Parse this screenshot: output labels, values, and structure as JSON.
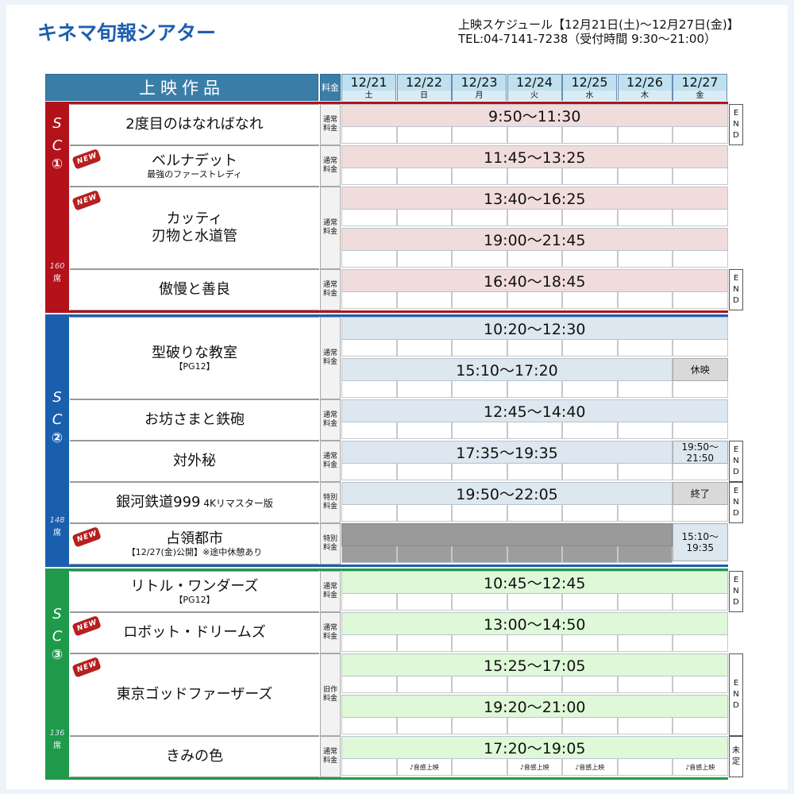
{
  "header": {
    "logo": "キネマ旬報シアター",
    "schedule_line": "上映スケジュール【12月21日(土)～12月27日(金)】",
    "tel_line": "TEL:04-7141-7238（受付時間 9:30～21:00）",
    "col_title": "上映作品",
    "col_fee": "料金"
  },
  "days": [
    {
      "date": "12/21",
      "dow": "土"
    },
    {
      "date": "12/22",
      "dow": "日"
    },
    {
      "date": "12/23",
      "dow": "月"
    },
    {
      "date": "12/24",
      "dow": "火"
    },
    {
      "date": "12/25",
      "dow": "水"
    },
    {
      "date": "12/26",
      "dow": "木"
    },
    {
      "date": "12/27",
      "dow": "金"
    }
  ],
  "labels": {
    "end": "END",
    "new": "NEW",
    "fee_normal": "通常料金",
    "fee_special": "特別料金",
    "fee_old": "旧作料金",
    "seki": "席"
  },
  "screens": [
    {
      "s": "S",
      "c": "C",
      "num": "①",
      "seats": "160",
      "color": "#b3121a",
      "films": [
        {
          "title": "2度目のはなればなれ",
          "sub": "",
          "fee": "通常料金",
          "new": false,
          "times": [
            "9:50～11:30"
          ],
          "end": "END"
        },
        {
          "title": "ベルナデット",
          "sub": "最強のファーストレディ",
          "fee": "通常料金",
          "new": true,
          "times": [
            "11:45～13:25"
          ],
          "end": ""
        },
        {
          "title": "カッティ",
          "sub2": "刃物と水道管",
          "fee": "通常料金",
          "new": true,
          "times": [
            "13:40～16:25",
            "19:00～21:45"
          ],
          "end": ""
        },
        {
          "title": "傲慢と善良",
          "sub": "",
          "fee": "通常料金",
          "new": false,
          "times": [
            "16:40～18:45"
          ],
          "end": "END"
        }
      ]
    },
    {
      "s": "S",
      "c": "C",
      "num": "②",
      "seats": "148",
      "color": "#1a5fae",
      "films": [
        {
          "title": "型破りな教室",
          "sub": "【PG12】",
          "fee": "通常料金",
          "new": false,
          "times": [
            "10:20～12:30",
            "15:10～17:20"
          ],
          "note2": "休映"
        },
        {
          "title": "お坊さまと鉄砲",
          "sub": "",
          "fee": "通常料金",
          "new": false,
          "times": [
            "12:45～14:40"
          ]
        },
        {
          "title": "対外秘",
          "sub": "",
          "fee": "通常料金",
          "new": false,
          "times": [
            "17:35～19:35"
          ],
          "note": "19:50～21:50",
          "end": "END"
        },
        {
          "title": "銀河鉄道999",
          "title_suffix": "4Kリマスター版",
          "fee": "特別料金",
          "new": false,
          "times": [
            "19:50～22:05"
          ],
          "note": "終了",
          "end": "END"
        },
        {
          "title": "占領都市",
          "sub": "【12/27(金)公開】※途中休憩あり",
          "fee": "特別料金",
          "new": true,
          "times": [],
          "note": "15:10～19:35"
        }
      ]
    },
    {
      "s": "S",
      "c": "C",
      "num": "③",
      "seats": "136",
      "color": "#1f9a4a",
      "films": [
        {
          "title": "リトル・ワンダーズ",
          "sub": "【PG12】",
          "fee": "通常料金",
          "new": false,
          "times": [
            "10:45～12:45"
          ],
          "end": "END"
        },
        {
          "title": "ロボット・ドリームズ",
          "sub": "",
          "fee": "通常料金",
          "new": true,
          "times": [
            "13:00～14:50"
          ]
        },
        {
          "title": "東京ゴッドファーザーズ",
          "sub": "",
          "fee": "旧作料金",
          "new": true,
          "times": [
            "15:25～17:05",
            "19:20～21:00"
          ],
          "end": "END"
        },
        {
          "title": "きみの色",
          "sub": "",
          "fee": "通常料金",
          "new": false,
          "times": [
            "17:20～19:05"
          ],
          "end": "未定",
          "sound": [
            "",
            "♪音感上映",
            "",
            "♪音感上映",
            "♪音感上映",
            "",
            "♪音感上映"
          ]
        }
      ]
    }
  ],
  "colors": {
    "sc1_bar": "#f1dcdc",
    "sc2_bar": "#dde7f0",
    "sc3_bar": "#dff8d8",
    "header_teal": "#3a7ea8",
    "gray": "#9a9a9a"
  }
}
